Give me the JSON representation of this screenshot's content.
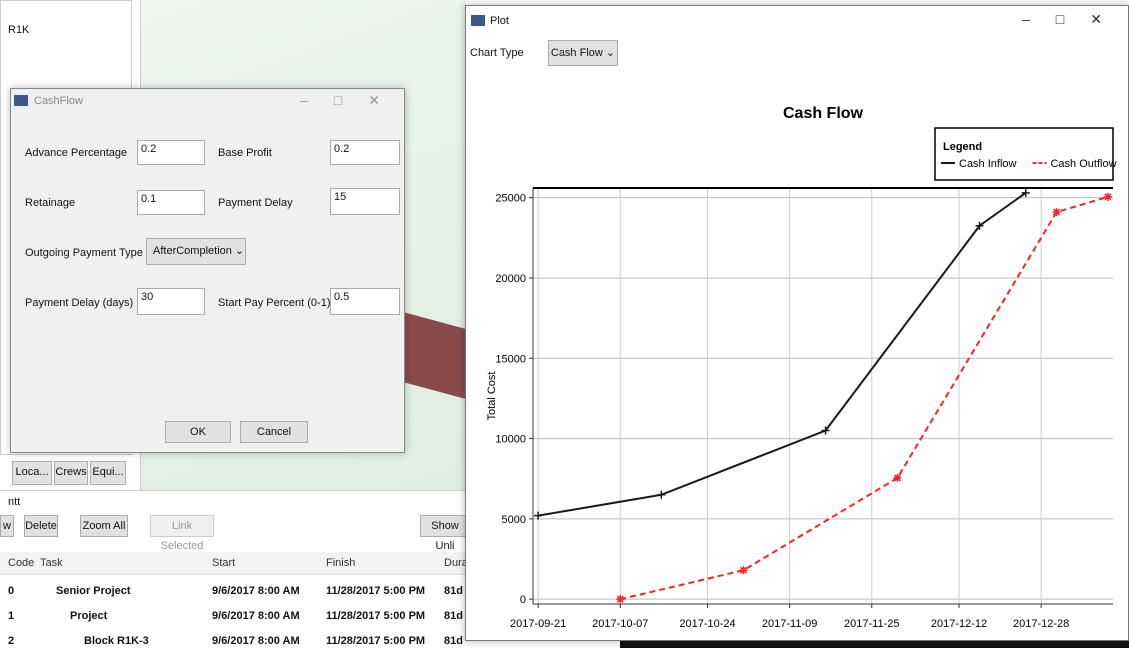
{
  "background": {
    "tree_item": "R1K",
    "tabs": [
      "Loca...",
      "Crews",
      "Equi..."
    ],
    "gantt_label": "ntt",
    "buttons": [
      "w",
      "Delete",
      "Zoom All",
      "Link Selected",
      "Show Unli"
    ],
    "table": {
      "headers": [
        "Code",
        "Task",
        "Start",
        "Finish",
        "Dura"
      ],
      "rows": [
        [
          "0",
          "Senior Project",
          "9/6/2017 8:00 AM",
          "11/28/2017 5:00 PM",
          "81d"
        ],
        [
          "1",
          "Project",
          "9/6/2017 8:00 AM",
          "11/28/2017 5:00 PM",
          "81d"
        ],
        [
          "2",
          "Block R1K-3",
          "9/6/2017 8:00 AM",
          "11/28/2017 5:00 PM",
          "81d"
        ]
      ]
    }
  },
  "cashflow_dialog": {
    "title": "CashFlow",
    "fields": [
      {
        "label": "Advance Percentage",
        "value": "0.2"
      },
      {
        "label": "Base Profit",
        "value": "0.2"
      },
      {
        "label": "Retainage",
        "value": "0.1"
      },
      {
        "label": "Payment Delay",
        "value": "15"
      },
      {
        "label": "Outgoing Payment Type",
        "value": "AfterCompletion"
      },
      {
        "label": "Payment Delay (days)",
        "value": "30"
      },
      {
        "label": "Start Pay Percent (0-1)",
        "value": "0.5"
      }
    ],
    "ok": "OK",
    "cancel": "Cancel"
  },
  "plot_window": {
    "title": "Plot",
    "chart_type_label": "Chart Type",
    "chart_type_value": "Cash Flow"
  },
  "chart_data": {
    "type": "line",
    "title": "Cash Flow",
    "y_label": "Total Cost",
    "legend_title": "Legend",
    "legend_position": "top-right",
    "grid": true,
    "xlim": [
      "2017-09-20",
      "2018-01-11"
    ],
    "xticks": [
      "2017-09-21",
      "2017-10-07",
      "2017-10-24",
      "2017-11-09",
      "2017-11-25",
      "2017-12-12",
      "2017-12-28"
    ],
    "ylim": [
      -300,
      25600
    ],
    "yticks": [
      0,
      5000,
      10000,
      15000,
      20000,
      25000
    ],
    "series": [
      {
        "name": "Cash Inflow",
        "color": "#1a1a1a",
        "line_style": "solid",
        "marker": "plus",
        "x": [
          "2017-09-21",
          "2017-10-15",
          "2017-11-16",
          "2017-12-16",
          "2017-12-25"
        ],
        "values": [
          5200,
          6500,
          10500,
          23250,
          25300
        ]
      },
      {
        "name": "Cash Outflow",
        "color": "#ff2020",
        "line_style": "dashed",
        "marker": "star",
        "x": [
          "2017-10-07",
          "2017-10-31",
          "2017-11-30",
          "2017-12-31",
          "2018-01-10"
        ],
        "values": [
          0,
          1800,
          7550,
          24100,
          25050
        ]
      }
    ]
  }
}
